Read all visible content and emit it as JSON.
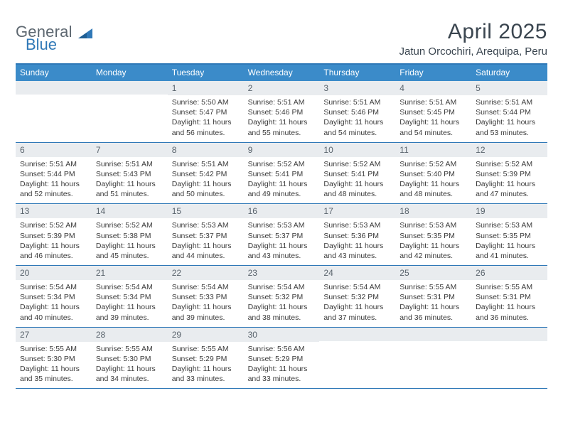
{
  "brand": {
    "part1": "General",
    "part2": "Blue"
  },
  "title": "April 2025",
  "location": "Jatun Orcochiri, Arequipa, Peru",
  "colors": {
    "header_bar": "#3b8bc9",
    "rule": "#2f78b7",
    "daynum_bg": "#e9ecef",
    "text": "#3a3a3a",
    "title_text": "#3b4650",
    "logo_gray": "#5d6770"
  },
  "dow": [
    "Sunday",
    "Monday",
    "Tuesday",
    "Wednesday",
    "Thursday",
    "Friday",
    "Saturday"
  ],
  "weeks": [
    [
      {
        "n": "",
        "sr": "",
        "ss": "",
        "dl": ""
      },
      {
        "n": "",
        "sr": "",
        "ss": "",
        "dl": ""
      },
      {
        "n": "1",
        "sr": "Sunrise: 5:50 AM",
        "ss": "Sunset: 5:47 PM",
        "dl": "Daylight: 11 hours and 56 minutes."
      },
      {
        "n": "2",
        "sr": "Sunrise: 5:51 AM",
        "ss": "Sunset: 5:46 PM",
        "dl": "Daylight: 11 hours and 55 minutes."
      },
      {
        "n": "3",
        "sr": "Sunrise: 5:51 AM",
        "ss": "Sunset: 5:46 PM",
        "dl": "Daylight: 11 hours and 54 minutes."
      },
      {
        "n": "4",
        "sr": "Sunrise: 5:51 AM",
        "ss": "Sunset: 5:45 PM",
        "dl": "Daylight: 11 hours and 54 minutes."
      },
      {
        "n": "5",
        "sr": "Sunrise: 5:51 AM",
        "ss": "Sunset: 5:44 PM",
        "dl": "Daylight: 11 hours and 53 minutes."
      }
    ],
    [
      {
        "n": "6",
        "sr": "Sunrise: 5:51 AM",
        "ss": "Sunset: 5:44 PM",
        "dl": "Daylight: 11 hours and 52 minutes."
      },
      {
        "n": "7",
        "sr": "Sunrise: 5:51 AM",
        "ss": "Sunset: 5:43 PM",
        "dl": "Daylight: 11 hours and 51 minutes."
      },
      {
        "n": "8",
        "sr": "Sunrise: 5:51 AM",
        "ss": "Sunset: 5:42 PM",
        "dl": "Daylight: 11 hours and 50 minutes."
      },
      {
        "n": "9",
        "sr": "Sunrise: 5:52 AM",
        "ss": "Sunset: 5:41 PM",
        "dl": "Daylight: 11 hours and 49 minutes."
      },
      {
        "n": "10",
        "sr": "Sunrise: 5:52 AM",
        "ss": "Sunset: 5:41 PM",
        "dl": "Daylight: 11 hours and 48 minutes."
      },
      {
        "n": "11",
        "sr": "Sunrise: 5:52 AM",
        "ss": "Sunset: 5:40 PM",
        "dl": "Daylight: 11 hours and 48 minutes."
      },
      {
        "n": "12",
        "sr": "Sunrise: 5:52 AM",
        "ss": "Sunset: 5:39 PM",
        "dl": "Daylight: 11 hours and 47 minutes."
      }
    ],
    [
      {
        "n": "13",
        "sr": "Sunrise: 5:52 AM",
        "ss": "Sunset: 5:39 PM",
        "dl": "Daylight: 11 hours and 46 minutes."
      },
      {
        "n": "14",
        "sr": "Sunrise: 5:52 AM",
        "ss": "Sunset: 5:38 PM",
        "dl": "Daylight: 11 hours and 45 minutes."
      },
      {
        "n": "15",
        "sr": "Sunrise: 5:53 AM",
        "ss": "Sunset: 5:37 PM",
        "dl": "Daylight: 11 hours and 44 minutes."
      },
      {
        "n": "16",
        "sr": "Sunrise: 5:53 AM",
        "ss": "Sunset: 5:37 PM",
        "dl": "Daylight: 11 hours and 43 minutes."
      },
      {
        "n": "17",
        "sr": "Sunrise: 5:53 AM",
        "ss": "Sunset: 5:36 PM",
        "dl": "Daylight: 11 hours and 43 minutes."
      },
      {
        "n": "18",
        "sr": "Sunrise: 5:53 AM",
        "ss": "Sunset: 5:35 PM",
        "dl": "Daylight: 11 hours and 42 minutes."
      },
      {
        "n": "19",
        "sr": "Sunrise: 5:53 AM",
        "ss": "Sunset: 5:35 PM",
        "dl": "Daylight: 11 hours and 41 minutes."
      }
    ],
    [
      {
        "n": "20",
        "sr": "Sunrise: 5:54 AM",
        "ss": "Sunset: 5:34 PM",
        "dl": "Daylight: 11 hours and 40 minutes."
      },
      {
        "n": "21",
        "sr": "Sunrise: 5:54 AM",
        "ss": "Sunset: 5:34 PM",
        "dl": "Daylight: 11 hours and 39 minutes."
      },
      {
        "n": "22",
        "sr": "Sunrise: 5:54 AM",
        "ss": "Sunset: 5:33 PM",
        "dl": "Daylight: 11 hours and 39 minutes."
      },
      {
        "n": "23",
        "sr": "Sunrise: 5:54 AM",
        "ss": "Sunset: 5:32 PM",
        "dl": "Daylight: 11 hours and 38 minutes."
      },
      {
        "n": "24",
        "sr": "Sunrise: 5:54 AM",
        "ss": "Sunset: 5:32 PM",
        "dl": "Daylight: 11 hours and 37 minutes."
      },
      {
        "n": "25",
        "sr": "Sunrise: 5:55 AM",
        "ss": "Sunset: 5:31 PM",
        "dl": "Daylight: 11 hours and 36 minutes."
      },
      {
        "n": "26",
        "sr": "Sunrise: 5:55 AM",
        "ss": "Sunset: 5:31 PM",
        "dl": "Daylight: 11 hours and 36 minutes."
      }
    ],
    [
      {
        "n": "27",
        "sr": "Sunrise: 5:55 AM",
        "ss": "Sunset: 5:30 PM",
        "dl": "Daylight: 11 hours and 35 minutes."
      },
      {
        "n": "28",
        "sr": "Sunrise: 5:55 AM",
        "ss": "Sunset: 5:30 PM",
        "dl": "Daylight: 11 hours and 34 minutes."
      },
      {
        "n": "29",
        "sr": "Sunrise: 5:55 AM",
        "ss": "Sunset: 5:29 PM",
        "dl": "Daylight: 11 hours and 33 minutes."
      },
      {
        "n": "30",
        "sr": "Sunrise: 5:56 AM",
        "ss": "Sunset: 5:29 PM",
        "dl": "Daylight: 11 hours and 33 minutes."
      },
      {
        "n": "",
        "sr": "",
        "ss": "",
        "dl": ""
      },
      {
        "n": "",
        "sr": "",
        "ss": "",
        "dl": ""
      },
      {
        "n": "",
        "sr": "",
        "ss": "",
        "dl": ""
      }
    ]
  ]
}
